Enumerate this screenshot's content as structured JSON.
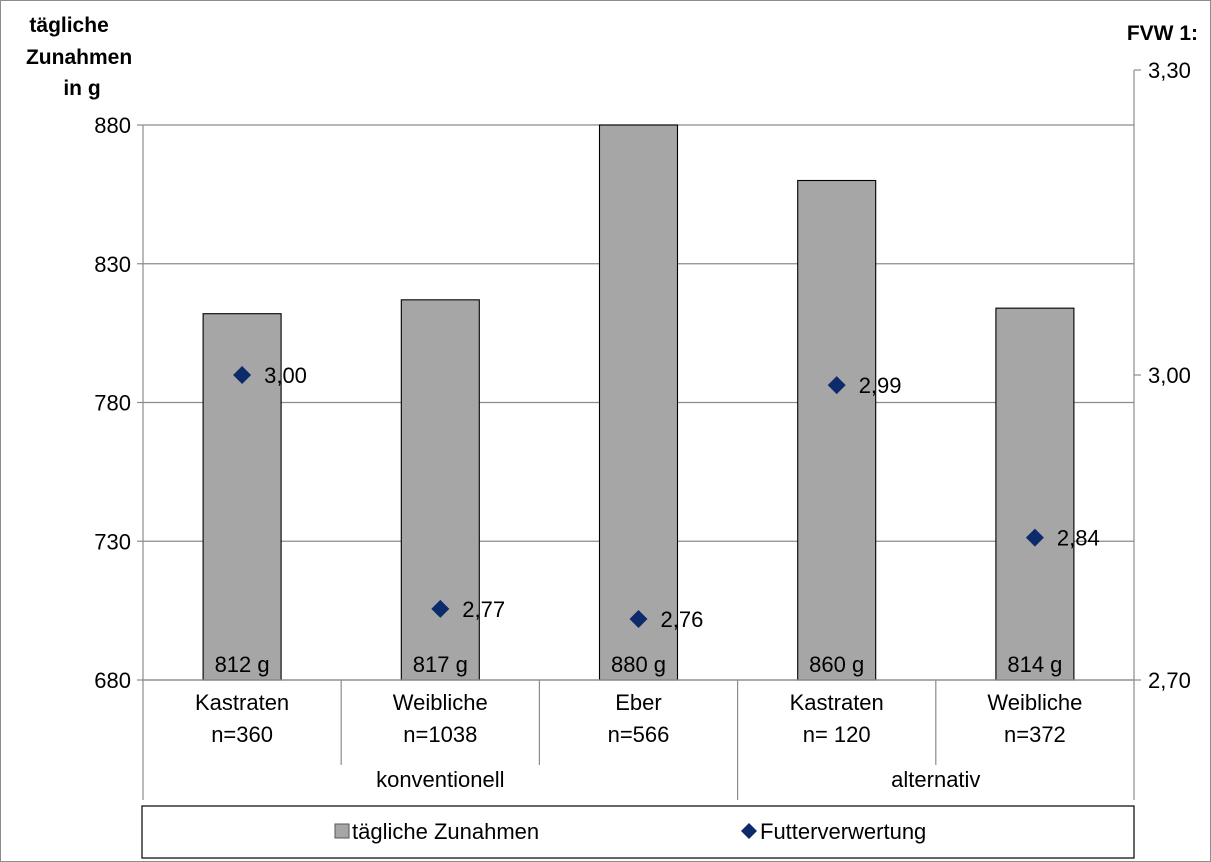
{
  "chart_data": {
    "type": "bar",
    "y_axis_left": {
      "title_lines": [
        "tägliche",
        "Zunahmen",
        "in g"
      ],
      "ylim": [
        680,
        880
      ],
      "ticks": [
        680,
        730,
        780,
        830,
        880
      ],
      "tick_labels": [
        "680",
        "730",
        "780",
        "830",
        "880"
      ]
    },
    "y_axis_right": {
      "title": "FVW 1:",
      "ylim": [
        2.7,
        3.3
      ],
      "ticks": [
        2.7,
        3.0,
        3.3
      ],
      "tick_labels": [
        "2,70",
        "3,00",
        "3,30"
      ]
    },
    "categories": [
      {
        "line1": "Kastraten",
        "line2": "n=360"
      },
      {
        "line1": "Weibliche",
        "line2": "n=1038"
      },
      {
        "line1": "Eber",
        "line2": "n=566"
      },
      {
        "line1": "Kastraten",
        "line2": "n= 120"
      },
      {
        "line1": "Weibliche",
        "line2": "n=372"
      }
    ],
    "groups": [
      {
        "label": "konventionell",
        "start": 0,
        "end": 2
      },
      {
        "label": "alternativ",
        "start": 3,
        "end": 4
      }
    ],
    "series": [
      {
        "name": "tägliche Zunahmen",
        "type": "bar",
        "axis": "left",
        "color": "#a6a6a6",
        "values": [
          812,
          817,
          880,
          860,
          814
        ],
        "data_labels": [
          "812 g",
          "817 g",
          "880 g",
          "860 g",
          "814 g"
        ]
      },
      {
        "name": "Futterverwertung",
        "type": "scatter",
        "axis": "right",
        "color": "#0d2a6b",
        "marker": "diamond",
        "values": [
          3.0,
          2.77,
          2.76,
          2.99,
          2.84
        ],
        "data_labels": [
          "3,00",
          "2,77",
          "2,76",
          "2,99",
          "2,84"
        ]
      }
    ],
    "grid": true,
    "legend_position": "bottom"
  }
}
